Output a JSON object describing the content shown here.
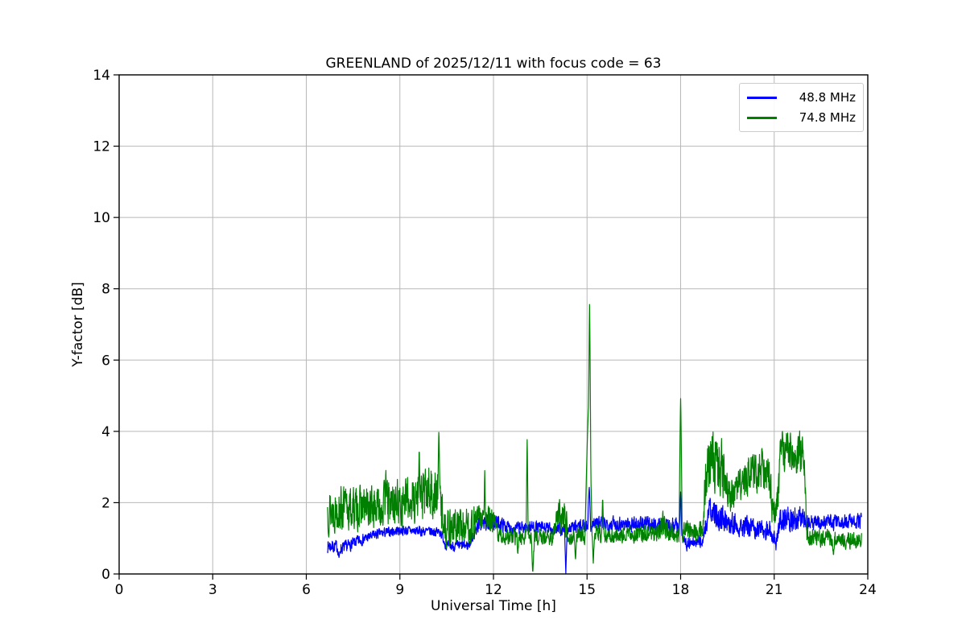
{
  "chart_data": {
    "type": "line",
    "title": "GREENLAND of 2025/12/11 with focus code = 63",
    "xlabel": "Universal Time [h]",
    "ylabel": "Y-factor [dB]",
    "xlim": [
      0,
      24
    ],
    "ylim": [
      0,
      14
    ],
    "xticks": [
      0,
      3,
      6,
      9,
      12,
      15,
      18,
      21,
      24
    ],
    "yticks": [
      0,
      2,
      4,
      6,
      8,
      10,
      12,
      14
    ],
    "grid": true,
    "grid_color": "#b8b8b8",
    "spine_color": "#000000",
    "legend": {
      "position": "upper right",
      "entries": [
        {
          "label": "48.8 MHz",
          "color": "#0000ff"
        },
        {
          "label": "74.8 MHz",
          "color": "#008000"
        }
      ]
    },
    "sample_step_h": 0.008,
    "series": [
      {
        "name": "48.8 MHz",
        "color": "#0000ff",
        "seed": 7,
        "t_start": 6.68,
        "t_end": 23.8,
        "envelope": [
          [
            6.68,
            0.55,
            1.05
          ],
          [
            7.2,
            0.5,
            0.95
          ],
          [
            7.6,
            0.7,
            1.1
          ],
          [
            8.3,
            0.95,
            1.3
          ],
          [
            9.0,
            1.05,
            1.4
          ],
          [
            10.3,
            1.0,
            1.35
          ],
          [
            10.5,
            0.6,
            0.95
          ],
          [
            11.2,
            0.6,
            1.0
          ],
          [
            11.5,
            1.1,
            1.65
          ],
          [
            12.0,
            1.2,
            1.75
          ],
          [
            12.6,
            1.05,
            1.5
          ],
          [
            13.3,
            1.1,
            1.55
          ],
          [
            14.2,
            1.0,
            1.45
          ],
          [
            14.45,
            1.05,
            1.5
          ],
          [
            15.3,
            1.15,
            1.7
          ],
          [
            17.9,
            1.1,
            1.65
          ],
          [
            18.2,
            0.6,
            1.05
          ],
          [
            18.7,
            0.7,
            1.15
          ],
          [
            18.9,
            1.2,
            2.25
          ],
          [
            19.4,
            1.1,
            2.0
          ],
          [
            20.0,
            0.95,
            1.7
          ],
          [
            20.9,
            0.9,
            1.55
          ],
          [
            21.05,
            0.55,
            1.1
          ],
          [
            21.2,
            1.1,
            2.0
          ],
          [
            21.7,
            1.1,
            2.1
          ],
          [
            22.0,
            1.15,
            1.85
          ],
          [
            22.2,
            1.15,
            1.7
          ],
          [
            23.8,
            1.2,
            1.75
          ]
        ],
        "spikes": [
          [
            15.07,
            2.45,
            0.08
          ],
          [
            18.0,
            2.3,
            0.06
          ]
        ],
        "dips": [
          [
            14.32,
            0.0,
            0.04
          ],
          [
            7.05,
            0.45,
            0.05
          ]
        ]
      },
      {
        "name": "74.8 MHz",
        "color": "#008000",
        "seed": 13,
        "t_start": 6.68,
        "t_end": 23.8,
        "envelope": [
          [
            6.68,
            1.0,
            2.6
          ],
          [
            8.0,
            1.1,
            2.6
          ],
          [
            9.3,
            1.2,
            2.9
          ],
          [
            10.0,
            1.3,
            3.3
          ],
          [
            10.3,
            1.0,
            3.0
          ],
          [
            10.45,
            0.65,
            2.0
          ],
          [
            11.3,
            0.7,
            2.0
          ],
          [
            11.5,
            1.1,
            2.1
          ],
          [
            12.0,
            1.0,
            1.9
          ],
          [
            12.2,
            0.75,
            1.35
          ],
          [
            13.9,
            0.75,
            1.3
          ],
          [
            14.05,
            1.0,
            2.15
          ],
          [
            14.3,
            1.0,
            2.1
          ],
          [
            14.45,
            0.75,
            1.25
          ],
          [
            14.95,
            0.8,
            1.5
          ],
          [
            15.3,
            0.8,
            1.6
          ],
          [
            15.6,
            0.8,
            1.35
          ],
          [
            17.3,
            0.85,
            1.45
          ],
          [
            17.4,
            0.9,
            1.9
          ],
          [
            17.65,
            0.85,
            1.5
          ],
          [
            17.9,
            0.8,
            1.4
          ],
          [
            18.15,
            0.85,
            1.55
          ],
          [
            18.7,
            0.9,
            1.55
          ],
          [
            18.85,
            2.2,
            4.4
          ],
          [
            19.3,
            2.0,
            4.0
          ],
          [
            19.7,
            1.6,
            2.7
          ],
          [
            20.0,
            2.0,
            3.4
          ],
          [
            20.6,
            2.2,
            3.7
          ],
          [
            20.85,
            2.0,
            3.5
          ],
          [
            20.95,
            1.1,
            2.4
          ],
          [
            21.1,
            1.2,
            2.5
          ],
          [
            21.2,
            2.6,
            4.1
          ],
          [
            21.6,
            2.8,
            4.35
          ],
          [
            21.95,
            2.4,
            4.0
          ],
          [
            22.05,
            0.8,
            1.45
          ],
          [
            22.15,
            0.7,
            1.3
          ],
          [
            23.8,
            0.6,
            1.25
          ]
        ],
        "spikes": [
          [
            8.55,
            2.95,
            0.05
          ],
          [
            9.62,
            3.55,
            0.05
          ],
          [
            10.25,
            4.02,
            0.06
          ],
          [
            11.72,
            2.9,
            0.04
          ],
          [
            13.08,
            3.77,
            0.04
          ],
          [
            15.05,
            4.7,
            0.14
          ],
          [
            15.08,
            7.56,
            0.06
          ],
          [
            15.5,
            2.15,
            0.05
          ],
          [
            18.0,
            4.92,
            0.06
          ]
        ],
        "dips": [
          [
            12.78,
            0.5,
            0.03
          ],
          [
            13.26,
            0.0,
            0.05
          ],
          [
            14.63,
            0.4,
            0.04
          ],
          [
            15.2,
            0.3,
            0.05
          ],
          [
            22.9,
            0.5,
            0.04
          ]
        ]
      }
    ]
  }
}
